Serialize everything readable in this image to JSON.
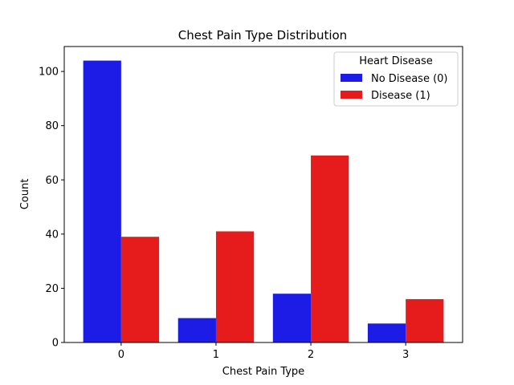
{
  "chart_data": {
    "type": "bar",
    "title": "Chest Pain Type Distribution",
    "xlabel": "Chest Pain Type",
    "ylabel": "Count",
    "categories": [
      "0",
      "1",
      "2",
      "3"
    ],
    "ylim": [
      0,
      109.2
    ],
    "yticks": [
      0,
      20,
      40,
      60,
      80,
      100
    ],
    "series": [
      {
        "name": "No Disease (0)",
        "color": "#1c1ce6",
        "values": [
          104,
          9,
          18,
          7
        ]
      },
      {
        "name": "Disease (1)",
        "color": "#e61c1c",
        "values": [
          39,
          41,
          69,
          16
        ]
      }
    ],
    "legend": {
      "title": "Heart Disease",
      "position": "top-right"
    },
    "grid": false
  }
}
